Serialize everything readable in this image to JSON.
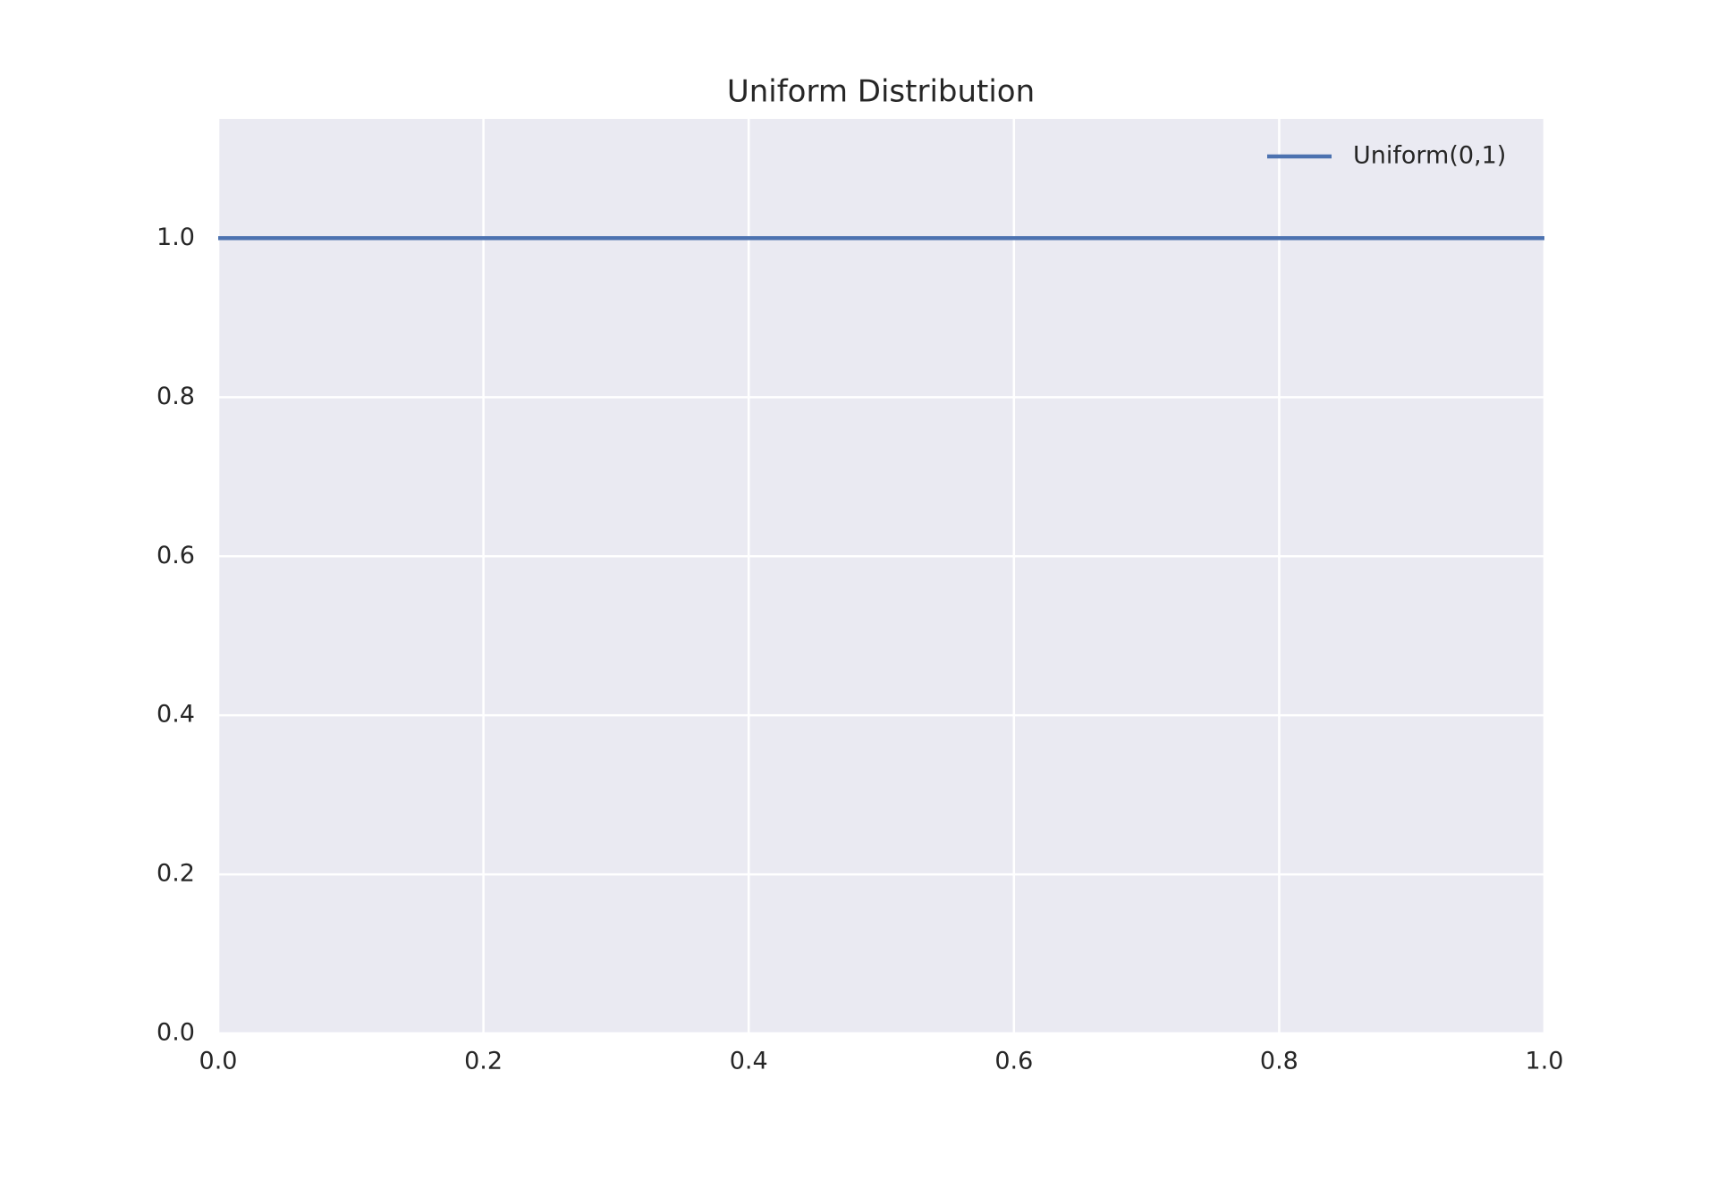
{
  "chart_data": {
    "type": "line",
    "title": "Uniform Distribution",
    "x": [
      0,
      1
    ],
    "series": [
      {
        "name": "Uniform(0,1)",
        "color": "#4c72b0",
        "values": [
          1,
          1
        ]
      }
    ],
    "xlim": [
      0,
      1
    ],
    "xticks": [
      {
        "value": 0,
        "label": "0.0"
      },
      0.2,
      0.4,
      0.6,
      0.8,
      {
        "value": 1,
        "label": "1.0"
      }
    ],
    "ylim": [
      0,
      1.15
    ],
    "yticks": [
      {
        "value": 0,
        "label": "0.0"
      },
      0.2,
      0.4,
      0.6,
      0.8,
      {
        "value": 1,
        "label": "1.0"
      }
    ],
    "grid": true,
    "legend": "upper right"
  }
}
